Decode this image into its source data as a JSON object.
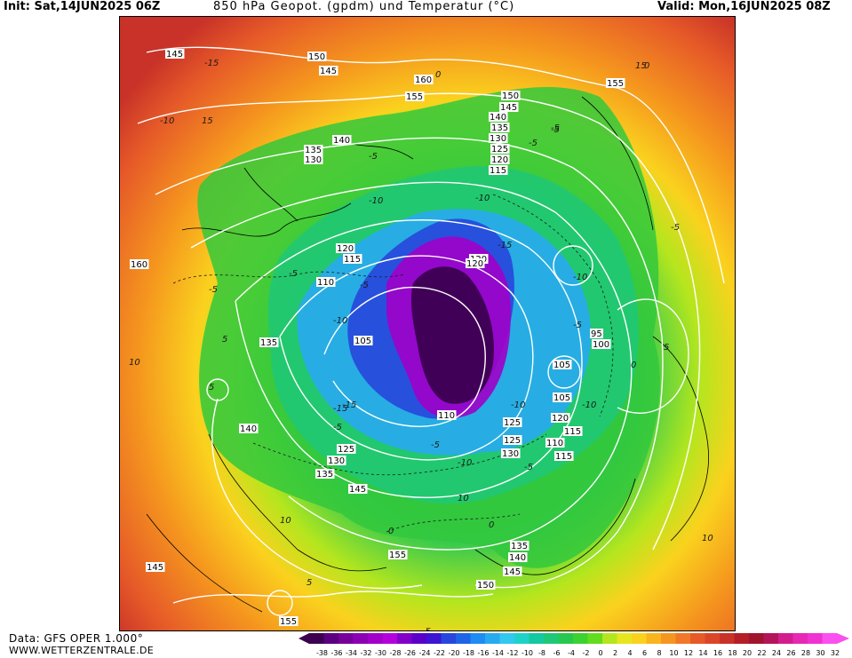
{
  "header": {
    "init": "Init: Sat,14JUN2025 06Z",
    "title": "850 hPa Geopot. (gpdm) und Temperatur (°C)",
    "valid": "Valid: Mon,16JUN2025 08Z"
  },
  "footer": {
    "data_source": "Data: GFS OPER 1.000°",
    "website": "WWW.WETTERZENTRALE.DE"
  },
  "legend": {
    "ticks": [
      "-38",
      "-36",
      "-34",
      "-32",
      "-30",
      "-28",
      "-26",
      "-24",
      "-22",
      "-20",
      "-18",
      "-16",
      "-14",
      "-12",
      "-10",
      "-8",
      "-6",
      "-4",
      "-2",
      "0",
      "2",
      "4",
      "6",
      "8",
      "10",
      "12",
      "14",
      "16",
      "18",
      "20",
      "22",
      "24",
      "26",
      "28",
      "30",
      "32"
    ],
    "colors": [
      "#3c0050",
      "#5a0080",
      "#78009a",
      "#8c00b4",
      "#a000c8",
      "#b400dc",
      "#8200c8",
      "#5a00c8",
      "#3c14d2",
      "#2846dc",
      "#1e64e6",
      "#1e8cf0",
      "#28aaf0",
      "#32c8f0",
      "#1ed2c8",
      "#14c8a0",
      "#1ec878",
      "#28c850",
      "#3cd232",
      "#64dc1e",
      "#b4e61e",
      "#e6e61e",
      "#fad21e",
      "#fab41e",
      "#f5961e",
      "#f07828",
      "#e65a28",
      "#dc4628",
      "#c83228",
      "#b41e28",
      "#a0142d",
      "#b4145a",
      "#d21e8c",
      "#e628b4",
      "#f032d2",
      "#fa50f0"
    ]
  },
  "map": {
    "geopotential_labels": [
      "145",
      "150",
      "145",
      "160",
      "155",
      "150",
      "145",
      "140",
      "135",
      "130",
      "125",
      "120",
      "115",
      "155",
      "140",
      "135",
      "130",
      "120",
      "115",
      "110",
      "105",
      "135",
      "160",
      "105",
      "115",
      "120",
      "125",
      "95",
      "100",
      "105",
      "120",
      "125",
      "130",
      "110",
      "115",
      "140",
      "125",
      "130",
      "135",
      "145",
      "155",
      "135",
      "140",
      "145",
      "150",
      "155",
      "145",
      "120",
      "110"
    ],
    "temperature_labels": [
      "-15",
      "-10",
      "0",
      "-5",
      "-5",
      "0",
      "-5",
      "-10",
      "-15",
      "-10",
      "-5",
      "-10",
      "-15",
      "-10",
      "-5",
      "-10",
      "-5",
      "0",
      "5",
      "10",
      "-5",
      "-15",
      "-10",
      "-5",
      "-5",
      "-10",
      "0",
      "-5",
      "5",
      "-5",
      "10",
      "5",
      "10",
      "15",
      "15",
      "10",
      "-5",
      "-5",
      "0",
      "5"
    ]
  }
}
